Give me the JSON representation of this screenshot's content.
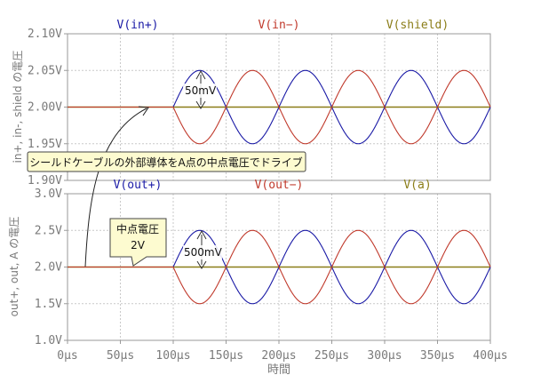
{
  "chart_data": [
    {
      "type": "line",
      "ylabel": "in+, in-, shield の電圧",
      "ylim": [
        1.9,
        2.1
      ],
      "yticks": [
        {
          "value": 2.1,
          "label": "2.10V"
        },
        {
          "value": 2.05,
          "label": "2.05V"
        },
        {
          "value": 2.0,
          "label": "2.00V"
        },
        {
          "value": 1.95,
          "label": "1.95V"
        },
        {
          "value": 1.9,
          "label": "1.90V"
        }
      ],
      "series": [
        {
          "name": "V(in+)",
          "color": "#1a1aa6",
          "baseline": 2.0,
          "amplitude": 0.05,
          "phase": 1,
          "start_us": 100,
          "period_us": 100
        },
        {
          "name": "V(in−)",
          "color": "#c0392b",
          "baseline": 2.0,
          "amplitude": 0.05,
          "phase": -1,
          "start_us": 100,
          "period_us": 100
        },
        {
          "name": "V(shield)",
          "color": "#8b7d18",
          "baseline": 2.0,
          "amplitude": 0,
          "phase": 0,
          "start_us": 0,
          "period_us": 100
        }
      ],
      "annotations": {
        "amplitude_label": "50mV"
      }
    },
    {
      "type": "line",
      "ylabel": "out+, out, A の電圧",
      "ylim": [
        1.0,
        3.0
      ],
      "yticks": [
        {
          "value": 3.0,
          "label": "3.0V"
        },
        {
          "value": 2.5,
          "label": "2.5V"
        },
        {
          "value": 2.0,
          "label": "2.0V"
        },
        {
          "value": 1.5,
          "label": "1.5V"
        },
        {
          "value": 1.0,
          "label": "1.0V"
        }
      ],
      "series": [
        {
          "name": "V(out+)",
          "color": "#1a1aa6",
          "baseline": 2.0,
          "amplitude": 0.5,
          "phase": 1,
          "start_us": 100,
          "period_us": 100
        },
        {
          "name": "V(out−)",
          "color": "#c0392b",
          "baseline": 2.0,
          "amplitude": 0.5,
          "phase": -1,
          "start_us": 100,
          "period_us": 100
        },
        {
          "name": "V(a)",
          "color": "#8b7d18",
          "baseline": 2.0,
          "amplitude": 0,
          "phase": 0,
          "start_us": 0,
          "period_us": 100
        }
      ],
      "annotations": {
        "amplitude_label": "500mV"
      }
    }
  ],
  "x_axis": {
    "label": "時間",
    "xlim": [
      0,
      400
    ],
    "ticks": [
      {
        "value": 0,
        "label": "0µs"
      },
      {
        "value": 50,
        "label": "50µs"
      },
      {
        "value": 100,
        "label": "100µs"
      },
      {
        "value": 150,
        "label": "150µs"
      },
      {
        "value": 200,
        "label": "200µs"
      },
      {
        "value": 250,
        "label": "250µs"
      },
      {
        "value": 300,
        "label": "300µs"
      },
      {
        "value": 350,
        "label": "350µs"
      },
      {
        "value": 400,
        "label": "400µs"
      }
    ]
  },
  "notes": {
    "shield": "シールドケーブルの外部導体をA点の中点電圧でドライブ",
    "midpoint_title": "中点電圧",
    "midpoint_value": "2V"
  },
  "colors": {
    "note_fill": "#fdfbd0",
    "note_stroke": "#444444"
  }
}
